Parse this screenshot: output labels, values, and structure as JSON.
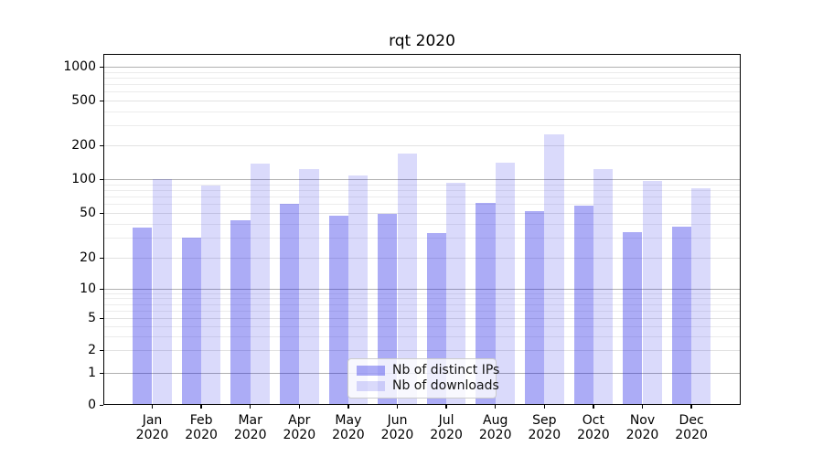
{
  "title": "rqt 2020",
  "chart_data": {
    "type": "bar",
    "title": "rqt 2020",
    "categories": [
      "Jan 2020",
      "Feb 2020",
      "Mar 2020",
      "Apr 2020",
      "May 2020",
      "Jun 2020",
      "Jul 2020",
      "Aug 2020",
      "Sep 2020",
      "Oct 2020",
      "Nov 2020",
      "Dec 2020"
    ],
    "series": [
      {
        "name": "Nb of distinct IPs",
        "color": "#a9a9f4",
        "fill_rgba": "rgba(25,25,230,0.36)",
        "values": [
          37,
          30,
          43,
          60,
          47,
          49,
          33,
          62,
          52,
          58,
          34,
          38
        ]
      },
      {
        "name": "Nb of downloads",
        "color": "#dcdcf8",
        "fill_rgba": "rgba(25,25,230,0.16)",
        "values": [
          100,
          88,
          137,
          122,
          108,
          168,
          93,
          139,
          250,
          123,
          97,
          83
        ]
      }
    ],
    "x_axis": {
      "months": [
        "Jan",
        "Feb",
        "Mar",
        "Apr",
        "May",
        "Jun",
        "Jul",
        "Aug",
        "Sep",
        "Oct",
        "Nov",
        "Dec"
      ],
      "year": "2020"
    },
    "y_axis": {
      "scale": "symlog",
      "ticks": [
        0,
        1,
        2,
        5,
        10,
        20,
        50,
        100,
        200,
        500,
        1000
      ],
      "range": [
        0,
        1288
      ]
    },
    "legend": {
      "position": "lower center",
      "entries": [
        "Nb of distinct IPs",
        "Nb of downloads"
      ]
    },
    "grid": "on",
    "xlabel": "",
    "ylabel": ""
  },
  "colors": {
    "grid_major": "#b0b0b0",
    "grid_sub": "#e2e2e2",
    "grid_minor": "#ececec",
    "axis": "#000000",
    "legend_border": "#cccccc",
    "background": "#ffffff"
  }
}
